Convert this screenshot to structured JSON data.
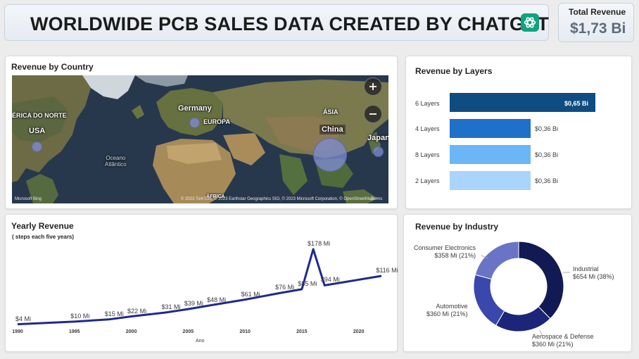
{
  "header": {
    "title": "WORLDWIDE PCB SALES DATA CREATED BY CHATGPT",
    "logo_icon": "chatgpt-logo-icon"
  },
  "kpi": {
    "label": "Total Revenue",
    "value": "$1,73 Bi"
  },
  "map_card": {
    "title": "Revenue by Country",
    "labels": {
      "north_america": "ÉRICA DO NORTE",
      "usa": "USA",
      "germany": "Germany",
      "europa": "EUROPA",
      "asia": "ÁSIA",
      "china": "China",
      "japan": "Japan",
      "ocean": "Oceano\nAtlântico",
      "africa": "ÁFRICA"
    },
    "bing": "Microsoft Bing",
    "copyright": "© 2023 TomTom, © 2023 Earthstar Geographics SIO, © 2023 Microsoft Corporation, © OpenStreetMap",
    "terms": "Terms",
    "zoom_in_icon": "plus-icon",
    "zoom_out_icon": "minus-icon"
  },
  "layers_card": {
    "title": "Revenue by Layers",
    "colors": [
      "#0f4c81",
      "#1f70c8",
      "#6bb6f7",
      "#a9d4fb"
    ],
    "bars": [
      {
        "label": "6 Layers",
        "value": 0.65,
        "display": "$0,65 Bi"
      },
      {
        "label": "4 Layers",
        "value": 0.36,
        "display": "$0,36 Bi"
      },
      {
        "label": "8 Layers",
        "value": 0.36,
        "display": "$0,36 Bi"
      },
      {
        "label": "2 Layers",
        "value": 0.36,
        "display": "$0,36 Bi"
      }
    ]
  },
  "yearly_card": {
    "title": "Yearly Revenue",
    "subtitle": "( steps each five years)",
    "x_axis_title": "Ano",
    "line_color": "#1f2a8c"
  },
  "industry_card": {
    "title": "Revenue by Industry",
    "slices": [
      {
        "name": "Industrial",
        "value": "$654 Mi (38%)",
        "percent": 38,
        "color": "#111a52"
      },
      {
        "name": "Aerospace & Defense",
        "value": "$360 Mi (21%)",
        "percent": 21,
        "color": "#1c2578"
      },
      {
        "name": "Automotive",
        "value": "$360 Mi (21%)",
        "percent": 21,
        "color": "#3a47ad"
      },
      {
        "name": "Consumer Electronics",
        "value": "$358 Mi (21%)",
        "percent": 21,
        "color": "#6a74c6"
      }
    ]
  },
  "chart_data": [
    {
      "type": "bar",
      "title": "Revenue by Layers",
      "categories": [
        "6 Layers",
        "4 Layers",
        "8 Layers",
        "2 Layers"
      ],
      "values": [
        0.65,
        0.36,
        0.36,
        0.36
      ],
      "data_labels": [
        "$0,65 Bi",
        "$0,36 Bi",
        "$0,36 Bi",
        "$0,36 Bi"
      ]
    },
    {
      "type": "line",
      "title": "Yearly Revenue",
      "subtitle": "( steps each five years)",
      "xlabel": "Ano",
      "ylabel": "",
      "x": [
        1990,
        1995,
        1998,
        2000,
        2003,
        2005,
        2007,
        2010,
        2013,
        2015,
        2016,
        2017,
        2022
      ],
      "values": [
        4,
        10,
        15,
        22,
        31,
        39,
        48,
        61,
        76,
        85,
        178,
        94,
        116
      ],
      "data_labels": [
        "$4 Mi",
        "$10 Mi",
        "$15 Mi",
        "$22 Mi",
        "$31 Mi",
        "$39 Mi",
        "$48 Mi",
        "$61 Mi",
        "$76 Mi",
        "$85 Mi",
        "$178 Mi",
        "$94 Mi",
        "$116 Mi"
      ],
      "x_ticks": [
        "1990",
        "1995",
        "2000",
        "2005",
        "2010",
        "2015",
        "2020"
      ],
      "xlim": [
        1990,
        2022
      ],
      "ylim": [
        0,
        190
      ]
    },
    {
      "type": "pie",
      "title": "Revenue by Industry",
      "categories": [
        "Industrial",
        "Aerospace & Defense",
        "Automotive",
        "Consumer Electronics"
      ],
      "values": [
        654,
        360,
        360,
        358
      ],
      "data_labels": [
        "$654 Mi (38%)",
        "$360 Mi (21%)",
        "$360 Mi (21%)",
        "$358 Mi (21%)"
      ]
    }
  ]
}
